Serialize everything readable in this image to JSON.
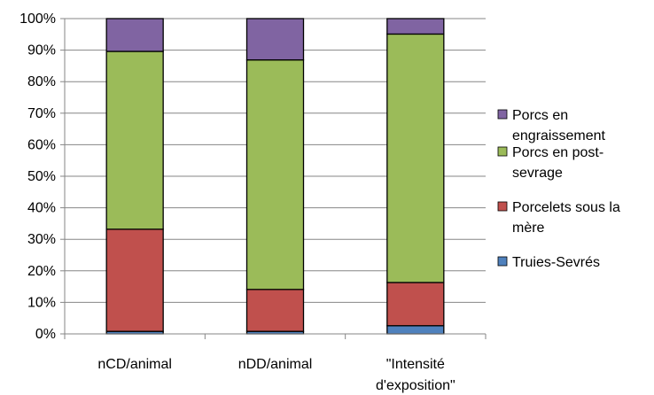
{
  "chart_data": {
    "type": "bar",
    "stacked": true,
    "percent": true,
    "categories": [
      [
        "nCD/animal"
      ],
      [
        "nDD/animal"
      ],
      [
        "\"Intensité",
        "d'exposition\""
      ]
    ],
    "series": [
      {
        "name": "Truies-Sevrés",
        "color": "#4f81bd",
        "values": [
          0.8,
          0.8,
          2.6
        ]
      },
      {
        "name": "Porcelets sous la mère",
        "color": "#c0504d",
        "values": [
          32.4,
          13.3,
          13.7
        ]
      },
      {
        "name": "Porcs en post-sevrage",
        "color": "#9bbb59",
        "values": [
          56.4,
          72.8,
          78.8
        ]
      },
      {
        "name": "Porcs en engraissement",
        "color": "#8064a2",
        "values": [
          10.4,
          13.1,
          4.9
        ]
      }
    ],
    "legend_labels": [
      {
        "series": "Porcs en engraissement",
        "lines": [
          "Porcs en",
          "engraissement"
        ],
        "color": "#8064a2"
      },
      {
        "series": "Porcs en post-sevrage",
        "lines": [
          "Porcs en post-",
          "sevrage"
        ],
        "color": "#9bbb59"
      },
      {
        "series": "Porcelets sous la mère",
        "lines": [
          "Porcelets sous la",
          "mère"
        ],
        "color": "#c0504d"
      },
      {
        "series": "Truies-Sevrés",
        "lines": [
          "Truies-Sevrés"
        ],
        "color": "#4f81bd"
      }
    ],
    "yticks": [
      "0%",
      "10%",
      "20%",
      "30%",
      "40%",
      "50%",
      "60%",
      "70%",
      "80%",
      "90%",
      "100%"
    ],
    "ylim": [
      0,
      100
    ],
    "grid": true,
    "legend_position": "right",
    "title": "",
    "xlabel": "",
    "ylabel": ""
  }
}
